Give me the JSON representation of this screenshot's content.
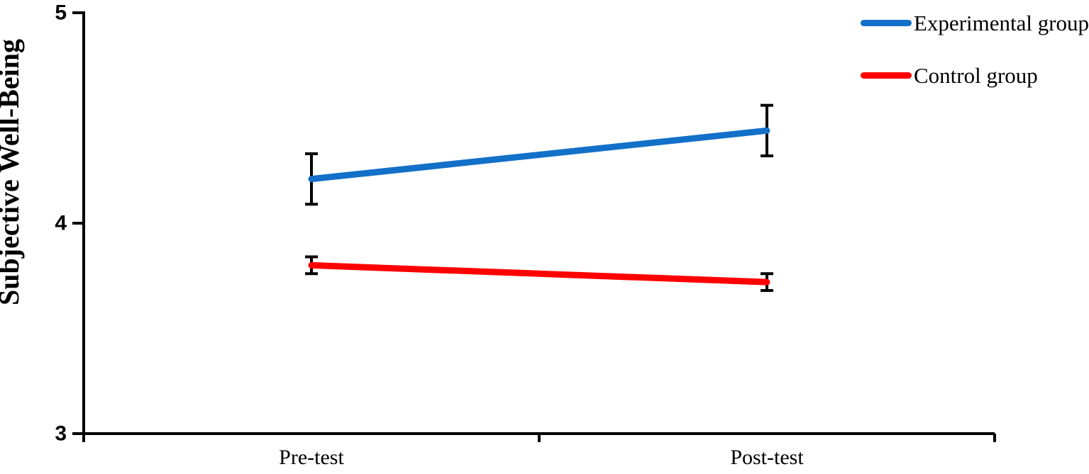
{
  "chart_data": {
    "type": "line",
    "title": "",
    "xlabel": "",
    "ylabel": "Subjective Well-Being",
    "categories": [
      "Pre-test",
      "Post-test"
    ],
    "series": [
      {
        "name": "Experimental group",
        "color": "#1370C8",
        "values": [
          4.21,
          4.44
        ],
        "error": [
          0.12,
          0.12
        ]
      },
      {
        "name": "Control group",
        "color": "#FF0000",
        "values": [
          3.8,
          3.72
        ],
        "error": [
          0.04,
          0.04
        ]
      }
    ],
    "ylim": [
      3,
      5
    ],
    "yticks": [
      5,
      4,
      3
    ],
    "grid": false,
    "legend_position": "top-right",
    "axis_color": "#000000",
    "error_bar_color": "#000000"
  }
}
